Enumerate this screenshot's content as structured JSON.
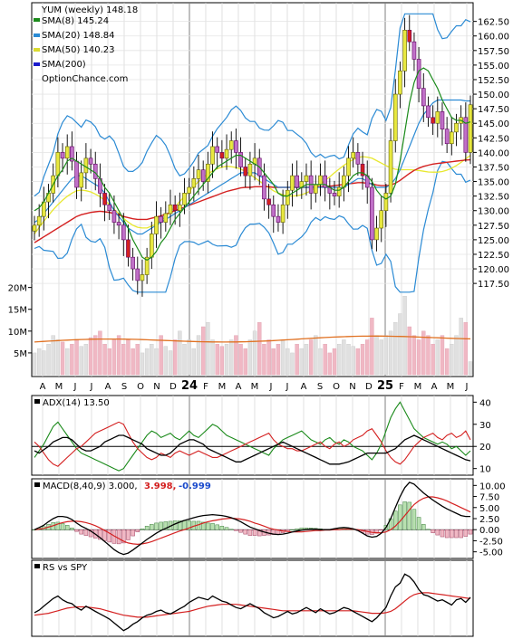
{
  "chart_data": {
    "type": "candlestick",
    "symbol": "YUM",
    "interval": "weekly",
    "last": 148.18,
    "title": "YUM (weekly) 148.18",
    "watermark": "OptionChance.com",
    "price_axis": {
      "range": [
        115.5,
        164
      ],
      "ticks": [
        "162.50",
        "160.00",
        "157.50",
        "155.00",
        "152.50",
        "150.00",
        "147.50",
        "145.00",
        "142.50",
        "140.00",
        "137.50",
        "135.00",
        "132.50",
        "130.00",
        "127.50",
        "125.00",
        "122.50",
        "120.00",
        "117.50"
      ]
    },
    "x_axis": {
      "labels": [
        "A",
        "M",
        "J",
        "J",
        "A",
        "S",
        "O",
        "N",
        "D",
        "24",
        "F",
        "M",
        "A",
        "M",
        "J",
        "J",
        "A",
        "S",
        "O",
        "N",
        "D",
        "25",
        "F",
        "M",
        "A",
        "M",
        "J"
      ],
      "year_labels": [
        "24",
        "25"
      ]
    },
    "legend": [
      {
        "text": "SMA(8) 145.24",
        "color": "#1a8a1a"
      },
      {
        "text": "SMA(20) 148.84",
        "color": "#2a8ad4"
      },
      {
        "text": "SMA(50) 140.23",
        "color": "#dada30"
      },
      {
        "text": "SMA(200)",
        "color": "#1a1acc"
      }
    ],
    "weekly_closes": [
      127.5,
      129,
      131.5,
      133,
      136,
      140,
      139,
      141,
      138.5,
      134,
      136.5,
      139,
      138,
      135.5,
      133,
      131,
      130,
      128,
      127.5,
      125,
      122,
      120,
      118,
      119,
      122,
      126,
      129,
      128,
      129.5,
      131,
      130,
      131,
      133,
      134,
      135.5,
      137,
      135,
      138,
      141,
      140,
      139,
      140.5,
      142,
      140,
      137.5,
      136,
      138,
      139,
      136,
      132,
      131,
      129,
      128,
      131,
      133.5,
      136,
      134,
      135,
      136,
      133,
      134.5,
      136,
      134,
      133,
      132.5,
      134,
      136,
      139,
      140,
      138,
      136,
      134,
      125,
      127,
      130,
      133,
      142,
      150,
      154,
      161,
      159,
      156,
      151,
      148,
      146,
      145,
      147,
      144,
      141.5,
      143.5,
      145,
      146,
      140,
      148.18
    ],
    "sma8": [
      130,
      130.5,
      131.5,
      133,
      134.5,
      136,
      137,
      138.5,
      139,
      138.5,
      138,
      137.5,
      137,
      136.5,
      135.5,
      134,
      133,
      131.5,
      130,
      128.5,
      127,
      125,
      123.5,
      122,
      121.5,
      122,
      123,
      124.5,
      125.5,
      127,
      128.5,
      129.5,
      130.5,
      131.5,
      132.5,
      133.5,
      134.5,
      135.5,
      136.5,
      137.5,
      138,
      138.5,
      139,
      139.5,
      139.5,
      139,
      138.5,
      138,
      137.5,
      136.5,
      135.5,
      134.5,
      133,
      132.5,
      132.5,
      133,
      133.5,
      134,
      134.5,
      134.5,
      134.5,
      134.5,
      134.5,
      134,
      133.5,
      133.5,
      134,
      135,
      136,
      136.5,
      136.5,
      136,
      135,
      133.5,
      132.5,
      132,
      132.5,
      134.5,
      138.5,
      143.5,
      148.5,
      152,
      154,
      154.5,
      154,
      152.5,
      151,
      149,
      147.5,
      146,
      145.5,
      145.5,
      145,
      145.24
    ],
    "sma20": [
      128,
      128.5,
      129.5,
      130.5,
      131.5,
      132.5,
      133.5,
      134.5,
      135.5,
      136,
      136,
      135.5,
      135,
      134.5,
      134,
      133,
      131.5,
      130,
      129,
      128,
      127,
      126.5,
      126,
      126,
      126.5,
      127,
      127.5,
      128,
      128.5,
      129,
      129.5,
      130,
      130.5,
      131,
      131.5,
      132,
      132.5,
      133,
      133.5,
      134,
      134.5,
      135,
      135.5,
      136,
      136.5,
      136.5,
      136.5,
      136.5,
      136,
      135.5,
      135,
      134.5,
      134,
      134,
      134,
      134,
      134,
      134,
      134,
      134,
      134,
      134,
      134,
      134,
      134,
      134,
      134,
      134.5,
      135,
      135.5,
      135.5,
      135,
      134.5,
      134,
      134,
      134,
      134.5,
      135.5,
      137,
      139,
      141,
      143,
      145,
      146.5,
      147.5,
      148.5,
      149,
      149,
      149,
      149,
      149,
      149,
      148.84,
      148.84
    ],
    "sma50": [
      126,
      126.5,
      127,
      127.5,
      128,
      128.5,
      129,
      129.5,
      130,
      130.5,
      130.8,
      131,
      131.2,
      131.3,
      131.4,
      131.3,
      131.2,
      131,
      130.8,
      130.5,
      130.3,
      130.1,
      130,
      130,
      130,
      130.2,
      130.4,
      130.6,
      130.9,
      131.2,
      131.5,
      131.8,
      132.1,
      132.4,
      132.7,
      133,
      133.3,
      133.6,
      133.9,
      134.2,
      134.5,
      134.8,
      135,
      135.2,
      135.4,
      135.5,
      135.5,
      135.6,
      135.6,
      135.6,
      135.6,
      135.5,
      135.5,
      135.5,
      135.5,
      135.5,
      135.5,
      135.5,
      135.5,
      135.5,
      135.6,
      135.6,
      135.7,
      135.7,
      135.8,
      135.9,
      136,
      136.1,
      136.2,
      136.3,
      136.3,
      136.2,
      136.1,
      135.9,
      135.8,
      135.8,
      135.9,
      136.2,
      136.7,
      137.3,
      137.9,
      138.4,
      138.8,
      139.1,
      139.3,
      139.5,
      139.6,
      139.7,
      139.8,
      139.9,
      140,
      140.1,
      140.2,
      140.23
    ],
    "volume_axis": {
      "ticks": [
        "20M",
        "15M",
        "10M",
        "5M"
      ],
      "max": 22
    },
    "volume": [
      5,
      6,
      5.5,
      7,
      9,
      8,
      7.5,
      6,
      7,
      8,
      6.5,
      7,
      8.5,
      9,
      10,
      7,
      6,
      8,
      9,
      7,
      8,
      6,
      7,
      5,
      6,
      7,
      6,
      9,
      6.5,
      5.5,
      8,
      10,
      7,
      8,
      6,
      9,
      11,
      12,
      8,
      7,
      6.5,
      7,
      8,
      9,
      7,
      6,
      8,
      10,
      12,
      7,
      8,
      6,
      7,
      8,
      6,
      5,
      7,
      6,
      7,
      8,
      9,
      6,
      7,
      5,
      6,
      7,
      8,
      7,
      6.5,
      6,
      7,
      8,
      13,
      9,
      8,
      9,
      10,
      12,
      14,
      18,
      11,
      9,
      8,
      10,
      9,
      7,
      8,
      9,
      6,
      7,
      9,
      13,
      12,
      3
    ],
    "volume_avg": 7.5,
    "adx": {
      "label": "ADX(14) 13.50",
      "axis": {
        "ticks": [
          "40",
          "30",
          "20",
          "10"
        ],
        "range": [
          7,
          43
        ]
      },
      "reference": 20,
      "adx": [
        18,
        17,
        18.5,
        20,
        22,
        23,
        24,
        24,
        23,
        21,
        19,
        18,
        18,
        19,
        20,
        22,
        23,
        24,
        25,
        25,
        24,
        23,
        22,
        21,
        19,
        18,
        17,
        16,
        16,
        17,
        19,
        21,
        22,
        23,
        23,
        22,
        21,
        19,
        18,
        17,
        16,
        15,
        14,
        13,
        13,
        14,
        15,
        16,
        17,
        18,
        19,
        20,
        21,
        22,
        21,
        20,
        19,
        18,
        17,
        16,
        15,
        14,
        13,
        12,
        12,
        12,
        12.5,
        13,
        14,
        15,
        16,
        17,
        17,
        17,
        17,
        17,
        18,
        19,
        21,
        23,
        24,
        25,
        24,
        23,
        22,
        21,
        20,
        19,
        18,
        17,
        16,
        15,
        14,
        13.5
      ],
      "plus_di": [
        15,
        18,
        21,
        25,
        29,
        31,
        28,
        25,
        22,
        19,
        17,
        16,
        15,
        14,
        13,
        12,
        11,
        10,
        9,
        10,
        13,
        16,
        19,
        22,
        25,
        27,
        26,
        24,
        25,
        26,
        24,
        23,
        25,
        27,
        25,
        24,
        26,
        28,
        30,
        29,
        27,
        25,
        24,
        23,
        22,
        21,
        20,
        19,
        18,
        17,
        16,
        19,
        21,
        23,
        24,
        25,
        26,
        27,
        25,
        23,
        22,
        21,
        23,
        24,
        22,
        21,
        23,
        22,
        20,
        19,
        18,
        16,
        14,
        17,
        21,
        27,
        33,
        37,
        40,
        36,
        32,
        28,
        26,
        24,
        23,
        22,
        21,
        22,
        21,
        19,
        20,
        18,
        16,
        18
      ],
      "minus_di": [
        22,
        20,
        17,
        14,
        12,
        11,
        13,
        15,
        17,
        19,
        20,
        22,
        24,
        26,
        27,
        28,
        29,
        30,
        31,
        30,
        26,
        22,
        19,
        17,
        15,
        14,
        15,
        17,
        16,
        15,
        17,
        18,
        17,
        16,
        17,
        18,
        17,
        16,
        15,
        15,
        16,
        17,
        18,
        19,
        20,
        21,
        22,
        23,
        24,
        25,
        26,
        23,
        21,
        20,
        19,
        19,
        18,
        18,
        19,
        20,
        21,
        22,
        20,
        19,
        21,
        22,
        20,
        21,
        23,
        24,
        25,
        27,
        28,
        25,
        22,
        18,
        15,
        13,
        12,
        14,
        17,
        20,
        22,
        24,
        25,
        26,
        24,
        23,
        25,
        26,
        24,
        25,
        27,
        23
      ]
    },
    "macd": {
      "label": "MACD(8,40,9) 3.000,",
      "signal_value": "3.998,",
      "hist_value": "-0.999",
      "axis": {
        "ticks": [
          "10.00",
          "7.50",
          "5.00",
          "2.50",
          "0.00",
          "-2.50",
          "-5.00"
        ],
        "range": [
          -6.5,
          11.5
        ]
      },
      "macd": [
        0,
        0.5,
        1,
        1.8,
        2.5,
        3,
        3,
        2.8,
        2.3,
        1.5,
        0.8,
        0.3,
        -0.3,
        -1,
        -1.8,
        -2.7,
        -3.6,
        -4.5,
        -5.2,
        -5.6,
        -5.3,
        -4.6,
        -3.8,
        -3,
        -2.2,
        -1.5,
        -0.8,
        -0.2,
        0.3,
        0.8,
        1.3,
        1.7,
        2.1,
        2.4,
        2.7,
        3,
        3.2,
        3.3,
        3.4,
        3.3,
        3.2,
        3,
        2.7,
        2.3,
        1.8,
        1.2,
        0.6,
        0.2,
        -0.2,
        -0.5,
        -0.8,
        -1,
        -1.1,
        -1,
        -0.8,
        -0.5,
        -0.3,
        -0.1,
        0,
        0.1,
        0.1,
        0,
        0,
        0,
        0.2,
        0.4,
        0.5,
        0.4,
        0.2,
        -0.2,
        -0.8,
        -1.4,
        -1.7,
        -1.5,
        -0.8,
        0.5,
        2.5,
        5,
        7.5,
        9.5,
        10.7,
        10.3,
        9.3,
        8.3,
        7.5,
        6.7,
        6,
        5.3,
        4.7,
        4.2,
        3.7,
        3.2,
        3,
        3
      ],
      "signal": [
        0,
        0.1,
        0.3,
        0.6,
        0.9,
        1.3,
        1.6,
        1.8,
        1.9,
        1.9,
        1.8,
        1.6,
        1.3,
        0.9,
        0.4,
        -0.2,
        -0.8,
        -1.4,
        -2,
        -2.6,
        -3,
        -3.2,
        -3.3,
        -3.2,
        -3,
        -2.7,
        -2.3,
        -1.9,
        -1.5,
        -1.1,
        -0.7,
        -0.3,
        0,
        0.4,
        0.8,
        1.1,
        1.5,
        1.8,
        2,
        2.2,
        2.4,
        2.5,
        2.6,
        2.5,
        2.4,
        2.2,
        1.9,
        1.5,
        1.2,
        0.8,
        0.4,
        0.1,
        -0.1,
        -0.3,
        -0.4,
        -0.5,
        -0.5,
        -0.5,
        -0.4,
        -0.3,
        -0.2,
        -0.2,
        -0.1,
        -0.1,
        0,
        0,
        0.1,
        0.1,
        0.1,
        0,
        -0.2,
        -0.4,
        -0.6,
        -0.7,
        -0.7,
        -0.5,
        0,
        0.8,
        1.9,
        3.2,
        4.5,
        5.7,
        6.5,
        7.1,
        7.4,
        7.4,
        7.2,
        6.9,
        6.5,
        6,
        5.5,
        5,
        4.5,
        4
      ]
    },
    "rs": {
      "label": "RS vs SPY",
      "rs": [
        42,
        44,
        47,
        50,
        53,
        55,
        52,
        50,
        49,
        46,
        44,
        47,
        45,
        43,
        41,
        39,
        37,
        34,
        31,
        28,
        30,
        33,
        35,
        38,
        40,
        41,
        43,
        44,
        42,
        41,
        43,
        45,
        47,
        50,
        52,
        54,
        53,
        52,
        55,
        53,
        51,
        50,
        48,
        46,
        45,
        47,
        49,
        47,
        45,
        42,
        40,
        38,
        39,
        41,
        43,
        41,
        42,
        44,
        46,
        44,
        42,
        45,
        43,
        41,
        42,
        44,
        46,
        45,
        43,
        41,
        39,
        37,
        35,
        38,
        42,
        46,
        55,
        62,
        65,
        72,
        70,
        66,
        60,
        56,
        55,
        53,
        51,
        52,
        50,
        48,
        52,
        53,
        50,
        54
      ],
      "avg": [
        40,
        40.5,
        41,
        41.5,
        42.5,
        43.5,
        44.5,
        45.5,
        46,
        46.5,
        46.5,
        46.5,
        46,
        45.5,
        45,
        44,
        43,
        42,
        41,
        40,
        39.5,
        39,
        38.5,
        38.5,
        38.5,
        39,
        39.5,
        40,
        40.5,
        41,
        41.5,
        42,
        42.5,
        43,
        44,
        45,
        46,
        47,
        47.5,
        48,
        48.5,
        48.5,
        48.5,
        48.5,
        48,
        47.5,
        47,
        46.5,
        46,
        45.5,
        45,
        44.5,
        44,
        43.5,
        43.5,
        43.5,
        43.5,
        43.5,
        43.5,
        43.5,
        43.5,
        43.5,
        43.5,
        43.5,
        43.5,
        43.5,
        43.5,
        43.5,
        43.5,
        43,
        42.5,
        42,
        41.5,
        41.5,
        41.5,
        42,
        43,
        45,
        48,
        51,
        54,
        56,
        57,
        57.5,
        57.5,
        57,
        56.5,
        56,
        55.5,
        55,
        54.5,
        54,
        53.5,
        53
      ],
      "range": [
        25,
        80
      ]
    }
  }
}
